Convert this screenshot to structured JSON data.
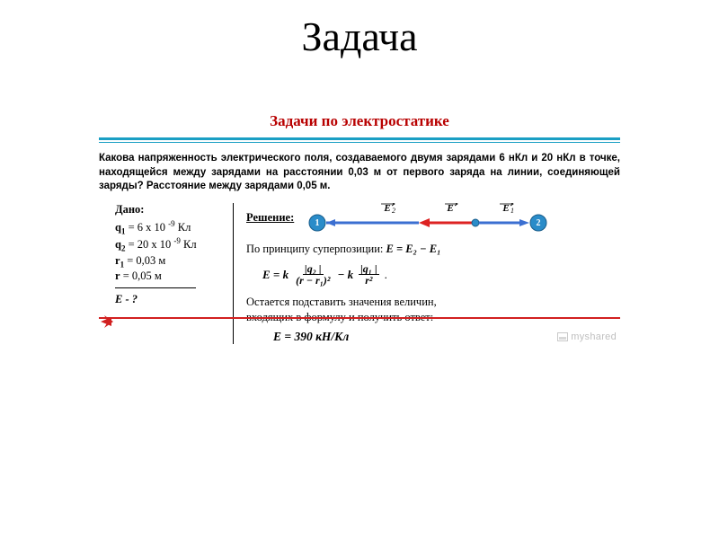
{
  "page_title": "Задача",
  "slide": {
    "sub_title": "Задачи  по электростатике",
    "title_color": "#b80000",
    "rule_color": "#1a9fc4",
    "problem_text": "Какова напряженность электрического поля, создаваемого двумя зарядами 6 нКл  и 20 нКл в точке, находящейся между зарядами на расстоянии 0,03 м от  первого заряда на линии, соединяющей заряды?  Расстояние между зарядами  0,05 м.",
    "given": {
      "header": "Дано:",
      "rows": [
        {
          "html": "<b>q<sub>1</sub></b> = 6 x 10 <sup>-9</sup> Кл"
        },
        {
          "html": "<b>q<sub>2</sub></b> =  20 x 10  <sup>-9</sup> Кл"
        },
        {
          "html": "<b>r<sub>1</sub></b> =  0,03 м"
        },
        {
          "html": "<b>r</b>  =   0,05 м"
        }
      ],
      "unknown": "E - ?"
    },
    "solution": {
      "header": "Решение:",
      "superposition_text": "По принципу суперпозиции: ",
      "superposition_eq": "E = E₂ − E₁",
      "formula": {
        "lhs": "E  =  k",
        "frac1_num": "|q₂ |",
        "frac1_den": "(r − r₁)²",
        "minus": "−   k",
        "frac2_num": "|q₁ |",
        "frac2_den": "r²",
        "tail": "."
      },
      "note_line1": "Остается подставить значения величин,",
      "note_line2": "входящих в формулу и получить ответ:",
      "answer": "E = 390 кН/Кл"
    },
    "diagram": {
      "node1_label": "1",
      "node2_label": "2",
      "E2_label": "E₂",
      "E_label": "E",
      "E1_label": "E₁",
      "node_color": "#2a8cc9",
      "E1_color": "#2a62c9",
      "E2_color": "#2a62c9",
      "E_color_left": "#d22",
      "E_color_right": "#2a62c9"
    },
    "bottom_rule_color": "#d22020",
    "watermark": "myshared"
  }
}
